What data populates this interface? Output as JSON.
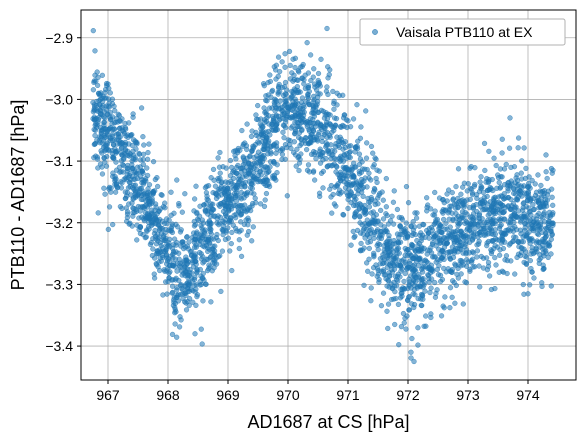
{
  "chart_data": {
    "type": "scatter",
    "title": "",
    "xlabel": "AD1687 at CS [hPa]",
    "ylabel": "PTB110 - AD1687 [hPa]",
    "xlim": [
      966.55,
      974.8
    ],
    "ylim": [
      -3.455,
      -2.855
    ],
    "xticks": [
      967,
      968,
      969,
      970,
      971,
      972,
      973,
      974
    ],
    "yticks": [
      -3.4,
      -3.3,
      -3.2,
      -3.1,
      -3.0,
      -2.9
    ],
    "xtick_labels": [
      "967",
      "968",
      "969",
      "970",
      "971",
      "972",
      "973",
      "974"
    ],
    "ytick_labels": [
      "−3.4",
      "−3.3",
      "−3.2",
      "−3.1",
      "−3.0",
      "−2.9"
    ],
    "grid": true,
    "legend_position": "top-right",
    "marker_color": "#1f77b4",
    "series": [
      {
        "name": "Vaisala PTB110 at EX",
        "trend": [
          [
            966.75,
            -3.01
          ],
          [
            966.95,
            -3.05
          ],
          [
            967.1,
            -3.08
          ],
          [
            967.3,
            -3.11
          ],
          [
            967.5,
            -3.14
          ],
          [
            967.7,
            -3.18
          ],
          [
            967.9,
            -3.23
          ],
          [
            968.05,
            -3.26
          ],
          [
            968.2,
            -3.28
          ],
          [
            968.4,
            -3.27
          ],
          [
            968.6,
            -3.24
          ],
          [
            968.8,
            -3.2
          ],
          [
            969.0,
            -3.18
          ],
          [
            969.2,
            -3.15
          ],
          [
            969.4,
            -3.12
          ],
          [
            969.6,
            -3.08
          ],
          [
            969.8,
            -3.04
          ],
          [
            970.0,
            -3.02
          ],
          [
            970.2,
            -3.02
          ],
          [
            970.4,
            -3.03
          ],
          [
            970.6,
            -3.05
          ],
          [
            970.8,
            -3.08
          ],
          [
            971.0,
            -3.12
          ],
          [
            971.2,
            -3.16
          ],
          [
            971.4,
            -3.2
          ],
          [
            971.6,
            -3.23
          ],
          [
            971.8,
            -3.26
          ],
          [
            972.0,
            -3.27
          ],
          [
            972.2,
            -3.27
          ],
          [
            972.4,
            -3.25
          ],
          [
            972.6,
            -3.24
          ],
          [
            972.8,
            -3.22
          ],
          [
            973.0,
            -3.21
          ],
          [
            973.2,
            -3.2
          ],
          [
            973.4,
            -3.19
          ],
          [
            973.6,
            -3.18
          ],
          [
            973.8,
            -3.19
          ],
          [
            974.0,
            -3.2
          ],
          [
            974.2,
            -3.2
          ],
          [
            974.42,
            -3.21
          ]
        ],
        "y_spread": 0.045,
        "n_points": 3200,
        "outliers": [
          [
            970.65,
            -2.885
          ],
          [
            970.55,
            -2.935
          ],
          [
            967.0,
            -2.975
          ],
          [
            972.1,
            -3.425
          ],
          [
            972.05,
            -3.41
          ],
          [
            968.45,
            -3.38
          ],
          [
            966.75,
            -3.005
          ],
          [
            974.4,
            -3.22
          ],
          [
            971.95,
            -3.355
          ],
          [
            968.3,
            -3.33
          ],
          [
            973.7,
            -3.03
          ],
          [
            974.3,
            -3.09
          ]
        ]
      }
    ]
  }
}
